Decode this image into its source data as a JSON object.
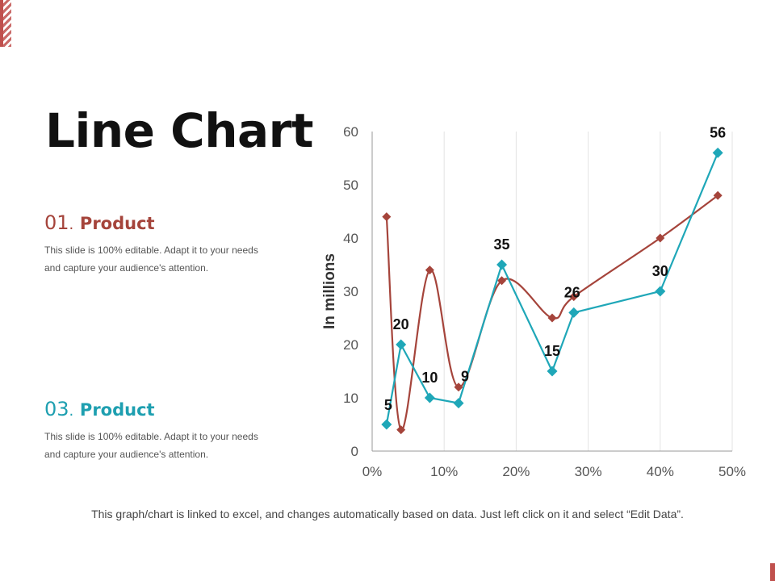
{
  "slide": {
    "title": "Line Chart",
    "footnote": "This graph/chart is linked to excel, and changes automatically based on data. Just left click on it and select “Edit Data”."
  },
  "sections": [
    {
      "number": "01",
      "dot": ".",
      "name": "Product",
      "description": "This slide is 100% editable. Adapt it to your needs and capture your audience's attention.",
      "color": "#a5443b"
    },
    {
      "number": "03",
      "dot": ".",
      "name": "Product",
      "description": "This slide is 100% editable. Adapt it to your needs and capture your audience's attention.",
      "color": "#1e9fb0"
    }
  ],
  "chart_data": {
    "type": "line",
    "title": "",
    "xlabel": "",
    "ylabel": "In millions",
    "xlim": [
      0,
      0.5
    ],
    "ylim": [
      0,
      60
    ],
    "x_ticks": [
      0,
      0.1,
      0.2,
      0.3,
      0.4,
      0.5
    ],
    "x_tick_labels": [
      "0%",
      "10%",
      "20%",
      "30%",
      "40%",
      "50%"
    ],
    "y_ticks": [
      0,
      10,
      20,
      30,
      40,
      50,
      60
    ],
    "y_tick_labels": [
      "0",
      "10",
      "20",
      "30",
      "40",
      "50",
      "60"
    ],
    "gridlines": "vertical",
    "series": [
      {
        "name": "Product 01",
        "color": "#a5443b",
        "smooth": true,
        "show_labels": false,
        "points": [
          {
            "x": 0.02,
            "y": 44
          },
          {
            "x": 0.04,
            "y": 4
          },
          {
            "x": 0.08,
            "y": 34
          },
          {
            "x": 0.12,
            "y": 12
          },
          {
            "x": 0.18,
            "y": 32
          },
          {
            "x": 0.25,
            "y": 25
          },
          {
            "x": 0.28,
            "y": 29
          },
          {
            "x": 0.4,
            "y": 40
          },
          {
            "x": 0.48,
            "y": 48
          }
        ]
      },
      {
        "name": "Product 03",
        "color": "#1fa7b8",
        "smooth": false,
        "show_labels": true,
        "points": [
          {
            "x": 0.02,
            "y": 5,
            "label": "5"
          },
          {
            "x": 0.04,
            "y": 20,
            "label": "20"
          },
          {
            "x": 0.08,
            "y": 10,
            "label": "10"
          },
          {
            "x": 0.12,
            "y": 9,
            "label": "9"
          },
          {
            "x": 0.18,
            "y": 35,
            "label": "35"
          },
          {
            "x": 0.25,
            "y": 15,
            "label": "15"
          },
          {
            "x": 0.28,
            "y": 26,
            "label": "26"
          },
          {
            "x": 0.4,
            "y": 30,
            "label": "30"
          },
          {
            "x": 0.48,
            "y": 56,
            "label": "56"
          }
        ]
      }
    ]
  }
}
